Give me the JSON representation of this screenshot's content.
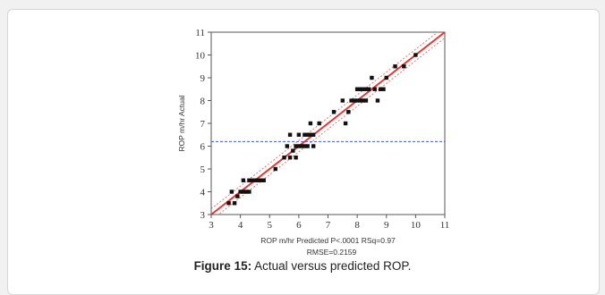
{
  "figure": {
    "label": "Figure 15:",
    "text": "Actual versus predicted ROP."
  },
  "colors": {
    "points": "#111111",
    "fit_line": "#e53935",
    "mean_line": "#3d5bd9",
    "confidence": "#e57373"
  },
  "chart_data": {
    "type": "scatter",
    "xlabel": "ROP m/hr Predicted P<.0001 RSq=0.97",
    "xlabel_line2": "RMSE=0.2159",
    "ylabel": "ROP m/hr Actual",
    "xlim": [
      3,
      11
    ],
    "ylim": [
      3,
      11
    ],
    "xticks": [
      "3",
      "4",
      "5",
      "6",
      "7",
      "8",
      "9",
      "10",
      "11"
    ],
    "yticks": [
      "3",
      "4",
      "5",
      "6",
      "7",
      "8",
      "9",
      "10",
      "11"
    ],
    "mean_actual": 6.2,
    "fit_line": [
      [
        3,
        3
      ],
      [
        11,
        11
      ]
    ],
    "grid": false,
    "points": {
      "x": [
        3.6,
        3.7,
        3.8,
        3.9,
        4.0,
        4.1,
        4.1,
        4.2,
        4.3,
        4.3,
        4.4,
        4.5,
        4.6,
        4.7,
        4.8,
        5.2,
        5.5,
        5.6,
        5.7,
        5.7,
        5.8,
        5.9,
        5.9,
        6.0,
        6.0,
        6.1,
        6.2,
        6.2,
        6.3,
        6.3,
        6.4,
        6.4,
        6.5,
        6.5,
        6.7,
        7.2,
        7.5,
        7.6,
        7.7,
        7.8,
        7.9,
        8.0,
        8.0,
        8.1,
        8.1,
        8.2,
        8.2,
        8.3,
        8.3,
        8.4,
        8.5,
        8.6,
        8.7,
        8.8,
        8.9,
        9.0,
        9.3,
        9.6,
        10.0
      ],
      "y": [
        3.5,
        4.0,
        3.5,
        3.8,
        4.0,
        4.0,
        4.5,
        4.0,
        4.5,
        4.0,
        4.5,
        4.5,
        4.5,
        4.5,
        4.5,
        5.0,
        5.5,
        6.0,
        5.5,
        6.5,
        5.8,
        6.0,
        5.5,
        6.0,
        6.5,
        6.0,
        6.0,
        6.5,
        6.5,
        6.0,
        6.5,
        7.0,
        6.0,
        6.5,
        7.0,
        7.5,
        8.0,
        7.0,
        7.5,
        8.0,
        8.0,
        8.5,
        8.0,
        8.0,
        8.5,
        8.5,
        8.0,
        8.5,
        8.0,
        8.5,
        9.0,
        8.5,
        8.0,
        8.5,
        8.5,
        9.0,
        9.5,
        9.5,
        10.0
      ]
    }
  }
}
